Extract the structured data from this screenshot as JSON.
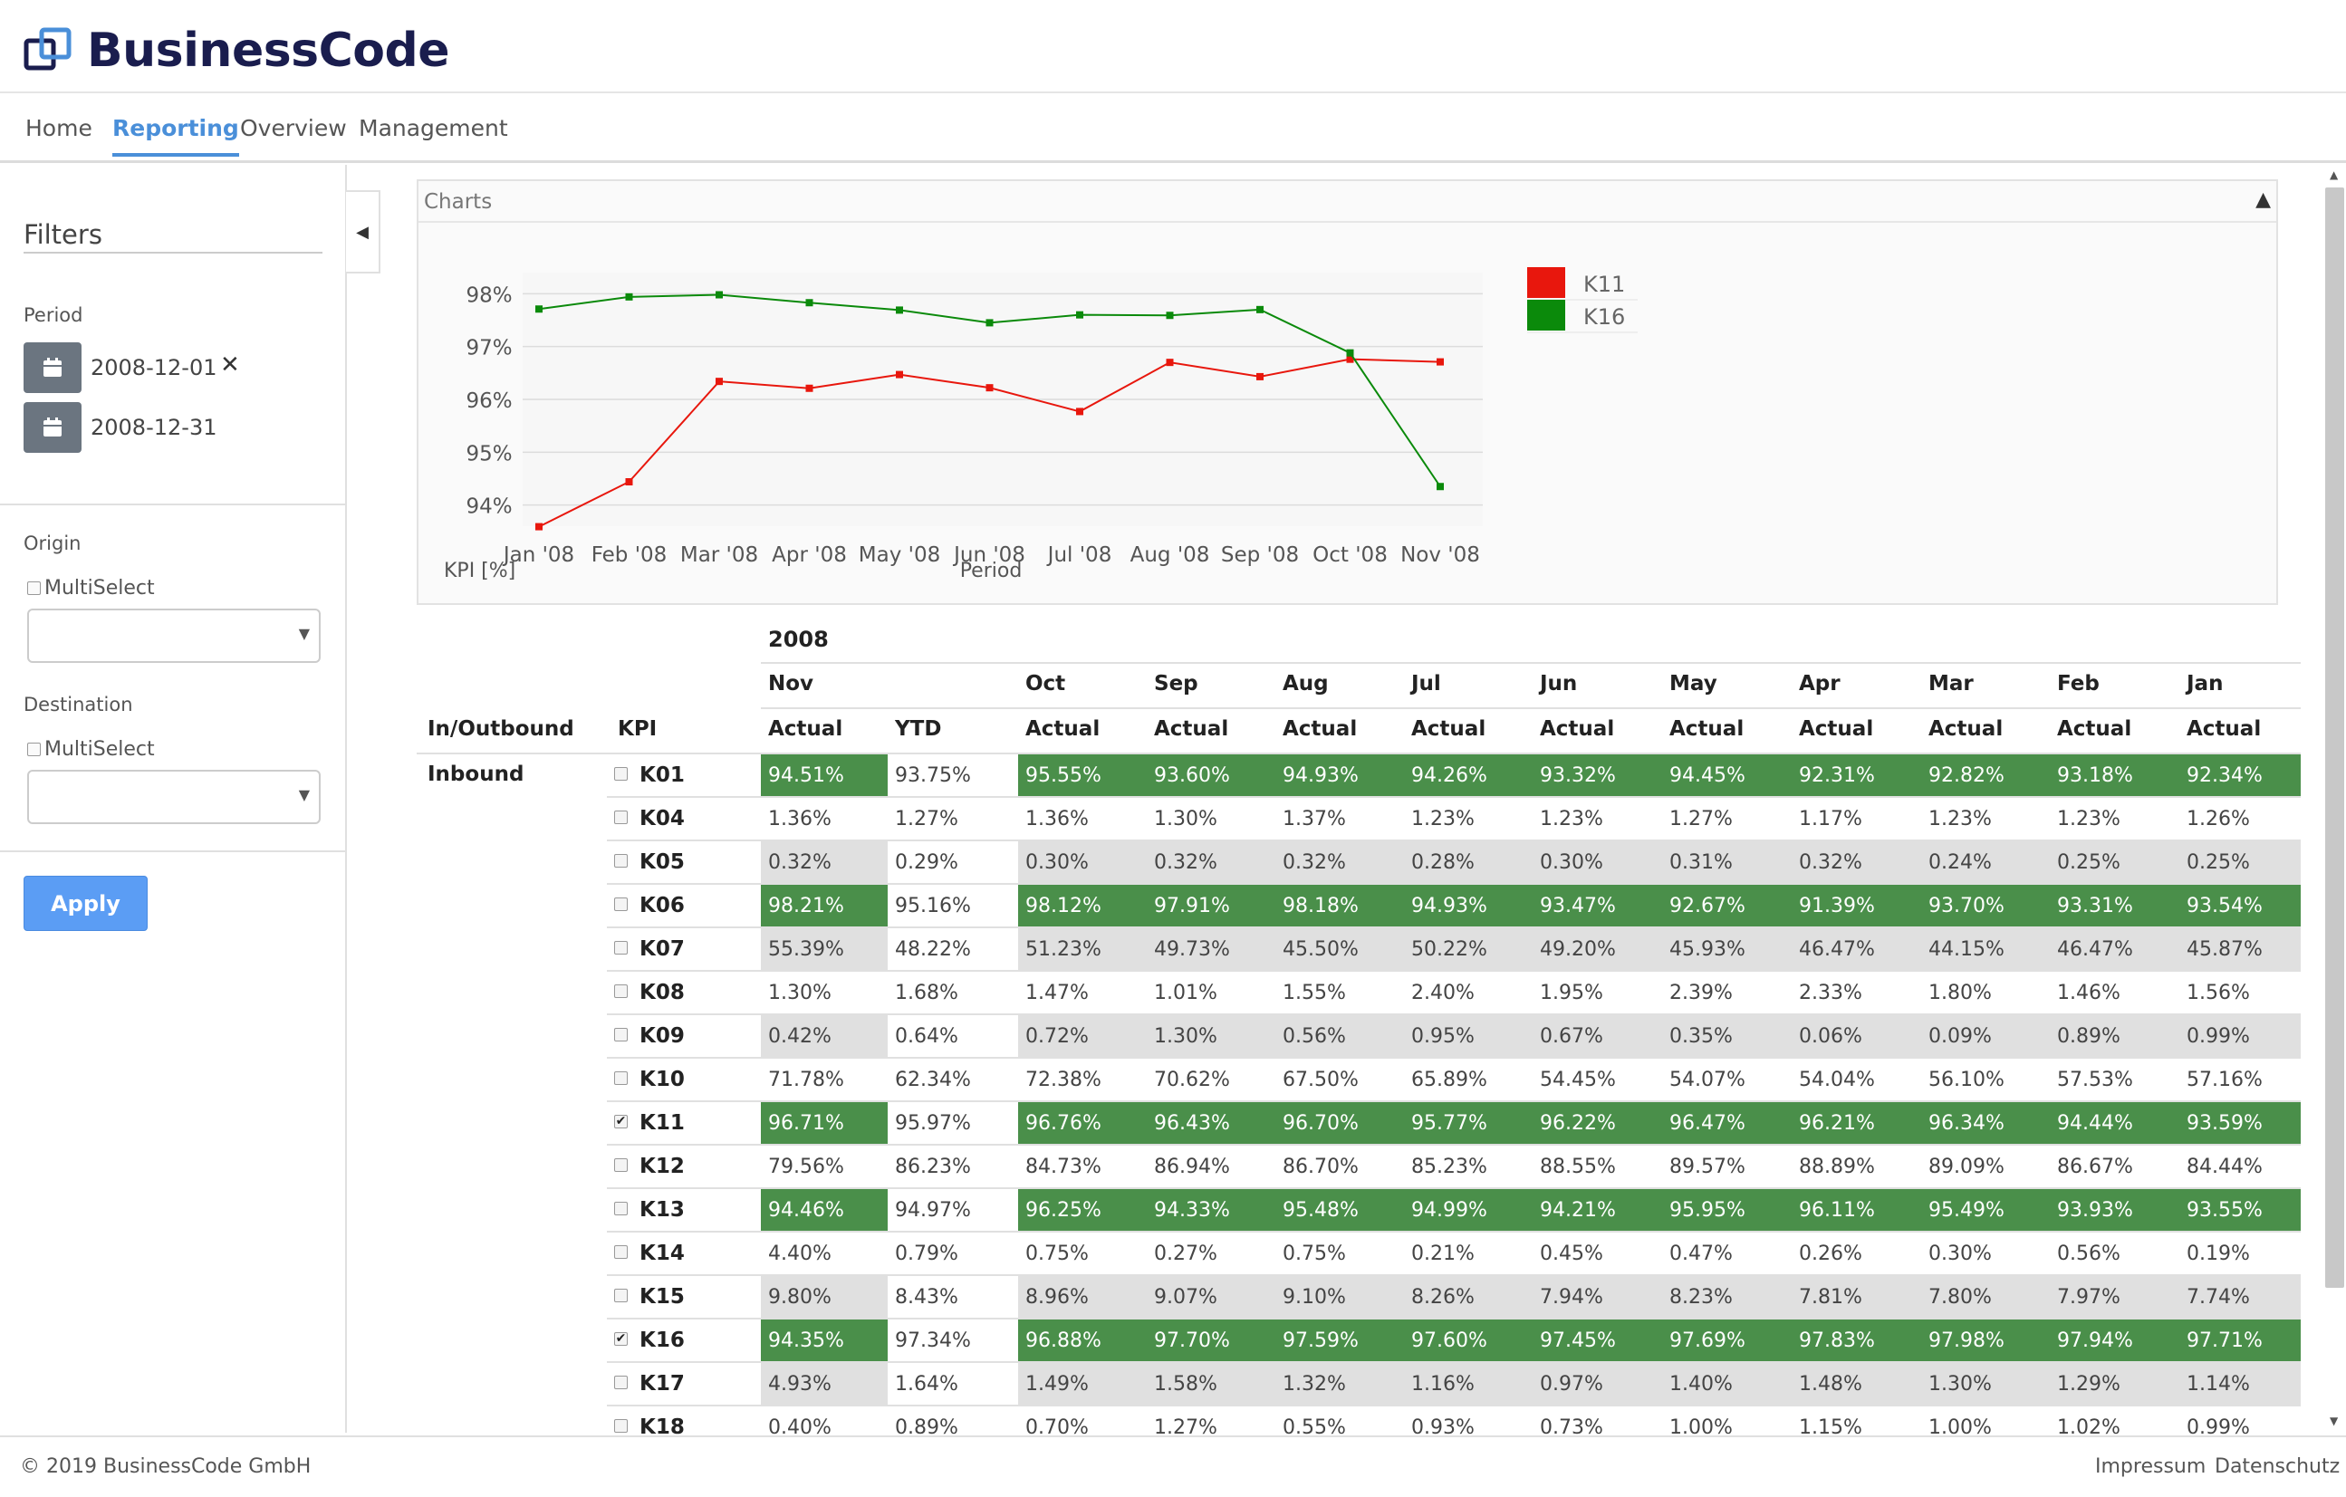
{
  "brand": {
    "name": "BusinessCode",
    "accent": "#4a8fd9",
    "navy": "#1a1d4e"
  },
  "nav": {
    "items": [
      {
        "label": "Home",
        "active": false
      },
      {
        "label": "Reporting",
        "active": true
      },
      {
        "label": "Overview",
        "active": false
      },
      {
        "label": "Management",
        "active": false
      }
    ]
  },
  "filters": {
    "title": "Filters",
    "period_label": "Period",
    "period_start": "2008-12-01",
    "period_end": "2008-12-31",
    "clear_icon": "close-icon",
    "calendar_icon": "calendar-icon",
    "origin_label": "Origin",
    "origin_multiselect": "MultiSelect",
    "destination_label": "Destination",
    "destination_multiselect": "MultiSelect",
    "apply_label": "Apply"
  },
  "charts_panel": {
    "title": "Charts",
    "toggle_icon": "triangle-up-icon"
  },
  "chart_data": {
    "type": "line",
    "x": [
      "Jan '08",
      "Feb '08",
      "Mar '08",
      "Apr '08",
      "May '08",
      "Jun '08",
      "Jul '08",
      "Aug '08",
      "Sep '08",
      "Oct '08",
      "Nov '08"
    ],
    "series": [
      {
        "name": "K11",
        "color": "#e8170d",
        "values": [
          93.59,
          94.44,
          96.34,
          96.21,
          96.47,
          96.22,
          95.77,
          96.7,
          96.43,
          96.76,
          96.71
        ]
      },
      {
        "name": "K16",
        "color": "#0b8a0b",
        "values": [
          97.71,
          97.94,
          97.98,
          97.83,
          97.69,
          97.45,
          97.6,
          97.59,
          97.7,
          96.88,
          94.35
        ]
      }
    ],
    "yticks": [
      "98%",
      "97%",
      "96%",
      "95%",
      "94%"
    ],
    "ylim": [
      93.6,
      98.4
    ],
    "xlabel": "Period",
    "ylabel": "KPI [%]",
    "grid": true,
    "legend": "top-right"
  },
  "table": {
    "year": "2008",
    "col_inout": "In/Outbound",
    "col_kpi": "KPI",
    "months": [
      "Nov",
      "Oct",
      "Sep",
      "Aug",
      "Jul",
      "Jun",
      "May",
      "Apr",
      "Mar",
      "Feb",
      "Jan"
    ],
    "actual_label": "Actual",
    "ytd_label": "YTD",
    "group": "Inbound",
    "highlight_color": "#4a8f4a",
    "rows": [
      {
        "kpi": "K01",
        "checked": false,
        "highlight": true,
        "nov": "94.51%",
        "ytd": "93.75%",
        "vals": [
          "95.55%",
          "93.60%",
          "94.93%",
          "94.26%",
          "93.32%",
          "94.45%",
          "92.31%",
          "92.82%",
          "93.18%",
          "92.34%"
        ]
      },
      {
        "kpi": "K04",
        "checked": false,
        "highlight": false,
        "nov": "1.36%",
        "ytd": "1.27%",
        "vals": [
          "1.36%",
          "1.30%",
          "1.37%",
          "1.23%",
          "1.23%",
          "1.27%",
          "1.17%",
          "1.23%",
          "1.23%",
          "1.26%"
        ]
      },
      {
        "kpi": "K05",
        "checked": false,
        "highlight": false,
        "nov": "0.32%",
        "ytd": "0.29%",
        "vals": [
          "0.30%",
          "0.32%",
          "0.32%",
          "0.28%",
          "0.30%",
          "0.31%",
          "0.32%",
          "0.24%",
          "0.25%",
          "0.25%"
        ]
      },
      {
        "kpi": "K06",
        "checked": false,
        "highlight": true,
        "nov": "98.21%",
        "ytd": "95.16%",
        "vals": [
          "98.12%",
          "97.91%",
          "98.18%",
          "94.93%",
          "93.47%",
          "92.67%",
          "91.39%",
          "93.70%",
          "93.31%",
          "93.54%"
        ]
      },
      {
        "kpi": "K07",
        "checked": false,
        "highlight": false,
        "nov": "55.39%",
        "ytd": "48.22%",
        "vals": [
          "51.23%",
          "49.73%",
          "45.50%",
          "50.22%",
          "49.20%",
          "45.93%",
          "46.47%",
          "44.15%",
          "46.47%",
          "45.87%"
        ]
      },
      {
        "kpi": "K08",
        "checked": false,
        "highlight": false,
        "nov": "1.30%",
        "ytd": "1.68%",
        "vals": [
          "1.47%",
          "1.01%",
          "1.55%",
          "2.40%",
          "1.95%",
          "2.39%",
          "2.33%",
          "1.80%",
          "1.46%",
          "1.56%"
        ]
      },
      {
        "kpi": "K09",
        "checked": false,
        "highlight": false,
        "nov": "0.42%",
        "ytd": "0.64%",
        "vals": [
          "0.72%",
          "1.30%",
          "0.56%",
          "0.95%",
          "0.67%",
          "0.35%",
          "0.06%",
          "0.09%",
          "0.89%",
          "0.99%"
        ]
      },
      {
        "kpi": "K10",
        "checked": false,
        "highlight": false,
        "nov": "71.78%",
        "ytd": "62.34%",
        "vals": [
          "72.38%",
          "70.62%",
          "67.50%",
          "65.89%",
          "54.45%",
          "54.07%",
          "54.04%",
          "56.10%",
          "57.53%",
          "57.16%"
        ]
      },
      {
        "kpi": "K11",
        "checked": true,
        "highlight": true,
        "nov": "96.71%",
        "ytd": "95.97%",
        "vals": [
          "96.76%",
          "96.43%",
          "96.70%",
          "95.77%",
          "96.22%",
          "96.47%",
          "96.21%",
          "96.34%",
          "94.44%",
          "93.59%"
        ]
      },
      {
        "kpi": "K12",
        "checked": false,
        "highlight": false,
        "nov": "79.56%",
        "ytd": "86.23%",
        "vals": [
          "84.73%",
          "86.94%",
          "86.70%",
          "85.23%",
          "88.55%",
          "89.57%",
          "88.89%",
          "89.09%",
          "86.67%",
          "84.44%"
        ]
      },
      {
        "kpi": "K13",
        "checked": false,
        "highlight": true,
        "nov": "94.46%",
        "ytd": "94.97%",
        "vals": [
          "96.25%",
          "94.33%",
          "95.48%",
          "94.99%",
          "94.21%",
          "95.95%",
          "96.11%",
          "95.49%",
          "93.93%",
          "93.55%"
        ]
      },
      {
        "kpi": "K14",
        "checked": false,
        "highlight": false,
        "nov": "4.40%",
        "ytd": "0.79%",
        "vals": [
          "0.75%",
          "0.27%",
          "0.75%",
          "0.21%",
          "0.45%",
          "0.47%",
          "0.26%",
          "0.30%",
          "0.56%",
          "0.19%"
        ]
      },
      {
        "kpi": "K15",
        "checked": false,
        "highlight": false,
        "nov": "9.80%",
        "ytd": "8.43%",
        "vals": [
          "8.96%",
          "9.07%",
          "9.10%",
          "8.26%",
          "7.94%",
          "8.23%",
          "7.81%",
          "7.80%",
          "7.97%",
          "7.74%"
        ]
      },
      {
        "kpi": "K16",
        "checked": true,
        "highlight": true,
        "nov": "94.35%",
        "ytd": "97.34%",
        "vals": [
          "96.88%",
          "97.70%",
          "97.59%",
          "97.60%",
          "97.45%",
          "97.69%",
          "97.83%",
          "97.98%",
          "97.94%",
          "97.71%"
        ]
      },
      {
        "kpi": "K17",
        "checked": false,
        "highlight": false,
        "nov": "4.93%",
        "ytd": "1.64%",
        "vals": [
          "1.49%",
          "1.58%",
          "1.32%",
          "1.16%",
          "0.97%",
          "1.40%",
          "1.48%",
          "1.30%",
          "1.29%",
          "1.14%"
        ]
      },
      {
        "kpi": "K18",
        "checked": false,
        "highlight": false,
        "nov": "0.40%",
        "ytd": "0.89%",
        "vals": [
          "0.70%",
          "1.27%",
          "0.55%",
          "0.93%",
          "0.73%",
          "1.00%",
          "1.15%",
          "1.00%",
          "1.02%",
          "0.99%"
        ]
      }
    ]
  },
  "footer": {
    "copyright": "© 2019 BusinessCode GmbH",
    "impressum": "Impressum",
    "datenschutz": "Datenschutz"
  }
}
